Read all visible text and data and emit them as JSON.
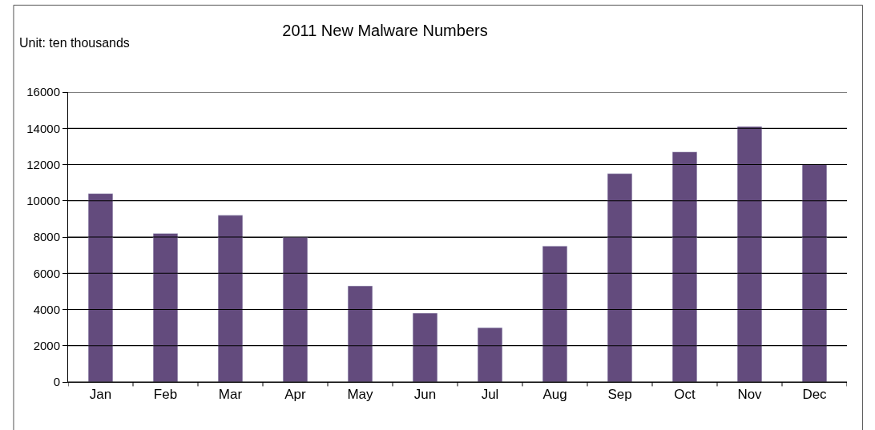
{
  "chart_data": {
    "type": "bar",
    "title": "2011 New Malware Numbers",
    "ylabel": "Unit: ten thousands",
    "categories": [
      "Jan",
      "Feb",
      "Mar",
      "Apr",
      "May",
      "Jun",
      "Jul",
      "Aug",
      "Sep",
      "Oct",
      "Nov",
      "Dec"
    ],
    "series": [
      {
        "color": "#634b7d",
        "values": [
          10400,
          8200,
          9200,
          8000,
          5300,
          3800,
          3000,
          7500,
          11500,
          12700,
          14100,
          12000
        ]
      }
    ],
    "ylim": [
      0,
      16000
    ],
    "yticks": [
      0,
      2000,
      4000,
      6000,
      8000,
      10000,
      12000,
      14000,
      16000
    ],
    "grid": "y"
  }
}
